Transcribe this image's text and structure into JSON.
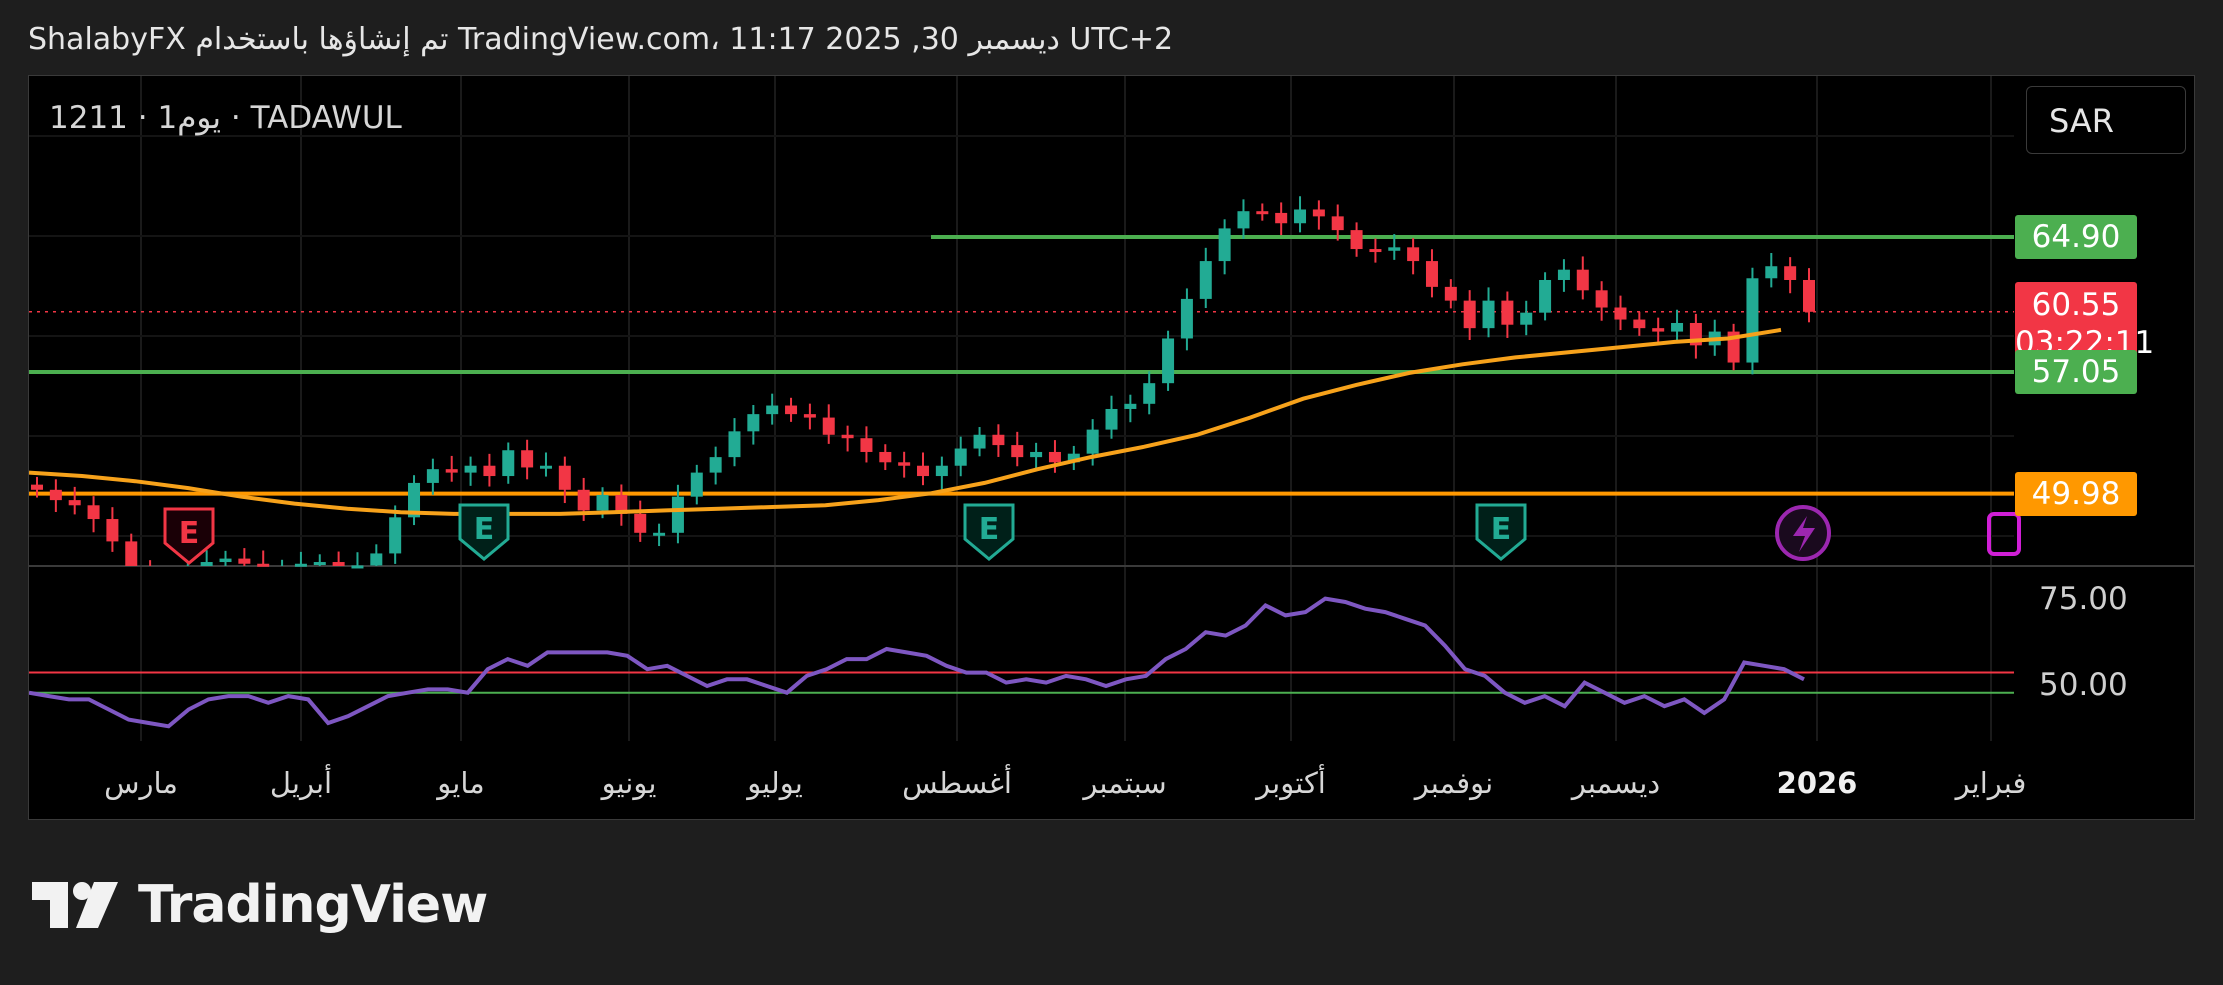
{
  "caption": "ShalabyFX تم إنشاؤها باستخدام TradingView.com، 11:17 2025 ,30 ديسمبر UTC+2",
  "symbol_label": "1211 · 1يوم · TADAWUL",
  "currency": "SAR",
  "brand": "TradingView",
  "colors": {
    "up": "#22ab94",
    "down": "#f23645",
    "green_line": "#4caf50",
    "orange_line": "#ff9800",
    "ema": "#f7a21b",
    "rsi": "#7e57c2",
    "marker_e_green": "#22ab94",
    "marker_e_red": "#f23645",
    "marker_purple": "#9c27b0"
  },
  "chart_data": {
    "type": "candlestick",
    "price_axis": {
      "min": 44.0,
      "max": 74.0
    },
    "horizontal_lines": [
      {
        "value": 64.9,
        "color": "#4caf50",
        "label": "64.90"
      },
      {
        "value": 57.05,
        "color": "#4caf50",
        "label": "57.05"
      },
      {
        "value": 49.98,
        "color": "#ff9800",
        "label": "49.98"
      }
    ],
    "last_price": {
      "value": 60.55,
      "label": "60.55",
      "countdown": "03:22:11",
      "color": "#f23645"
    },
    "months": [
      "مارس",
      "أبريل",
      "مايو",
      "يونيو",
      "يوليو",
      "أغسطس",
      "سبتمبر",
      "أكتوبر",
      "نوفمبر",
      "ديسمبر",
      "2026",
      "فبراير"
    ],
    "close_series": [
      50.2,
      49.6,
      49.3,
      48.5,
      47.2,
      45.5,
      44.2,
      44.0,
      45.6,
      46.0,
      46.2,
      45.9,
      45.4,
      45.6,
      45.9,
      46.0,
      45.4,
      45.8,
      46.5,
      48.6,
      50.6,
      51.4,
      51.2,
      51.6,
      51.0,
      52.5,
      51.5,
      51.6,
      50.2,
      49.0,
      49.9,
      48.8,
      47.7,
      47.7,
      49.8,
      51.2,
      52.1,
      53.6,
      54.6,
      55.1,
      54.6,
      54.4,
      53.4,
      53.2,
      52.4,
      51.8,
      51.6,
      51.0,
      51.6,
      52.6,
      53.4,
      52.8,
      52.1,
      52.4,
      51.8,
      52.3,
      53.7,
      54.9,
      55.2,
      56.4,
      59.0,
      61.3,
      63.5,
      65.4,
      66.4,
      66.3,
      65.7,
      66.5,
      66.1,
      65.3,
      64.2,
      64.1,
      64.3,
      63.5,
      62.0,
      61.2,
      59.6,
      61.2,
      59.8,
      60.5,
      62.4,
      63.0,
      61.8,
      60.8,
      60.1,
      59.6,
      59.4,
      59.9,
      58.6,
      59.4,
      57.6,
      62.5,
      63.2,
      62.4,
      60.55
    ],
    "ema_series": [
      51.2,
      51.0,
      50.7,
      50.3,
      49.8,
      49.4,
      49.1,
      48.9,
      48.8,
      48.8,
      48.8,
      48.9,
      49.0,
      49.1,
      49.2,
      49.3,
      49.6,
      50.0,
      50.6,
      51.4,
      52.1,
      52.7,
      53.4,
      54.4,
      55.5,
      56.3,
      57.0,
      57.5,
      57.9,
      58.2,
      58.5,
      58.8,
      59.0,
      59.5
    ],
    "rsi": {
      "levels": [
        75.0,
        50.0
      ],
      "level_labels": [
        "75.00",
        "50.00"
      ],
      "upper_band": 54.0,
      "lower_band": 48.0,
      "min": 38,
      "max": 82,
      "values": [
        48,
        47,
        46,
        46,
        43,
        40,
        39,
        38,
        43,
        46,
        47,
        47,
        45,
        47,
        46,
        39,
        41,
        44,
        47,
        48,
        49,
        49,
        48,
        55,
        58,
        56,
        60,
        60,
        60,
        60,
        59,
        55,
        56,
        53,
        50,
        52,
        52,
        50,
        48,
        53,
        55,
        58,
        58,
        61,
        60,
        59,
        56,
        54,
        54,
        51,
        52,
        51,
        53,
        52,
        50,
        52,
        53,
        58,
        61,
        66,
        65,
        68,
        74,
        71,
        72,
        76,
        75,
        73,
        72,
        70,
        68,
        62,
        55,
        53,
        48,
        45,
        47,
        44,
        51,
        48,
        45,
        47,
        44,
        46,
        42,
        46,
        57,
        56,
        55,
        52
      ]
    }
  }
}
